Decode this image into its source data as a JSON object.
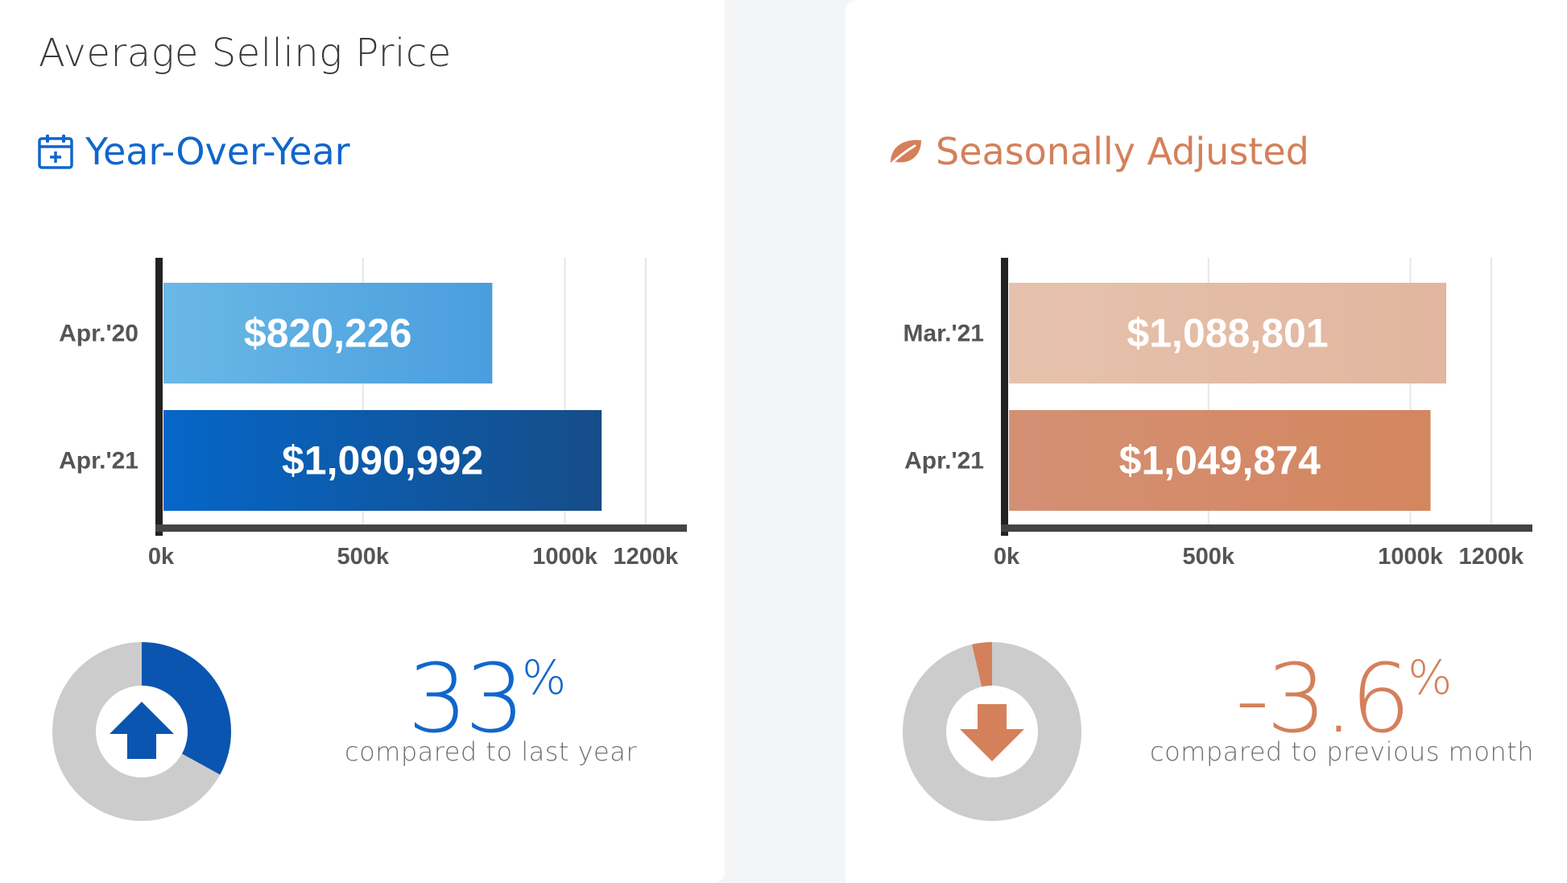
{
  "page_title": "Average Selling Price",
  "colors": {
    "blue": "#1166cc",
    "blue_light": "#4d9fdd",
    "blue_dark": "#0a55b0",
    "orange": "#d4805a",
    "orange_light": "#e3b9a3",
    "orange_dark": "#d88a63",
    "grey_ring": "#cccccc",
    "axis": "#333333"
  },
  "yoy": {
    "title": "Year-Over-Year",
    "icon": "calendar-plus-icon",
    "change_value": "33",
    "change_unit": "%",
    "caption": "compared to last year",
    "donut_fraction": 0.33,
    "donut_start_fraction": 0.0,
    "arrow_icon": "arrow-up-icon"
  },
  "sa": {
    "title": "Seasonally Adjusted",
    "icon": "leaf-icon",
    "change_value": "-3.6",
    "change_unit": "%",
    "caption": "compared to previous month",
    "donut_fraction": 0.036,
    "donut_start_fraction": 0.964,
    "arrow_icon": "arrow-down-icon"
  },
  "chart_data": [
    {
      "type": "bar",
      "orientation": "horizontal",
      "categories": [
        "Apr.'20",
        "Apr.'21"
      ],
      "values": [
        820226,
        1090992
      ],
      "value_labels": [
        "$820,226",
        "$1,090,992"
      ],
      "xlim": [
        0,
        1300000
      ],
      "xticks": [
        0,
        500000,
        1000000,
        1200000
      ],
      "xtick_labels": [
        "0k",
        "500k",
        "1000k",
        "1200k"
      ],
      "grid": true,
      "bar_colors": [
        [
          "#6ab8e6",
          "#4a9ede"
        ],
        [
          "#0566c8",
          "#164d88"
        ]
      ]
    },
    {
      "type": "bar",
      "orientation": "horizontal",
      "categories": [
        "Mar.'21",
        "Apr.'21"
      ],
      "values": [
        1088801,
        1049874
      ],
      "value_labels": [
        "$1,088,801",
        "$1,049,874"
      ],
      "xlim": [
        0,
        1300000
      ],
      "xticks": [
        0,
        500000,
        1000000,
        1200000
      ],
      "xtick_labels": [
        "0k",
        "500k",
        "1000k",
        "1200k"
      ],
      "grid": true,
      "bar_colors": [
        [
          "#e6c2ad",
          "#e2b69f"
        ],
        [
          "#d49075",
          "#d4865e"
        ]
      ]
    }
  ]
}
